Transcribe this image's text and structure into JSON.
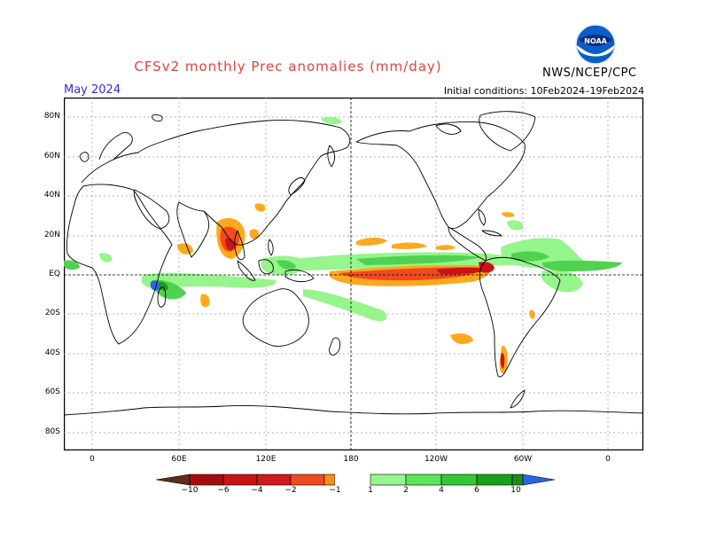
{
  "header": {
    "title": "CFSv2 monthly Prec anomalies (mm/day)",
    "month": "May 2024",
    "initial_conditions": "Initial conditions: 10Feb2024–19Feb2024",
    "agency": "NWS/NCEP/CPC",
    "logo_text": "NOAA"
  },
  "map": {
    "lon_labels": [
      "0",
      "60E",
      "120E",
      "180",
      "120W",
      "60W",
      "0"
    ],
    "lat_labels": [
      "80N",
      "60N",
      "40N",
      "20N",
      "EQ",
      "20S",
      "40S",
      "60S",
      "80S"
    ]
  },
  "colorbar": {
    "labels": [
      "−10",
      "−6",
      "−4",
      "−2",
      "−1",
      "1",
      "2",
      "4",
      "6",
      "10"
    ],
    "colors": [
      "#5a2e1a",
      "#a50d0d",
      "#d11a1a",
      "#f04b1e",
      "#fa8c1e",
      "#ffa81e",
      "#ffffff",
      "#96f58c",
      "#5ae65a",
      "#32c832",
      "#19a019",
      "#1e8c1e",
      "#2d64e6"
    ]
  },
  "anomaly_colors": {
    "dry_light": "#ffa81e",
    "dry_mid": "#f04b1e",
    "dry_strong": "#c81414",
    "wet_light": "#96f58c",
    "wet_mid": "#50d250",
    "wet_strong": "#1e9b1e",
    "wet_extreme": "#2d64e6"
  }
}
